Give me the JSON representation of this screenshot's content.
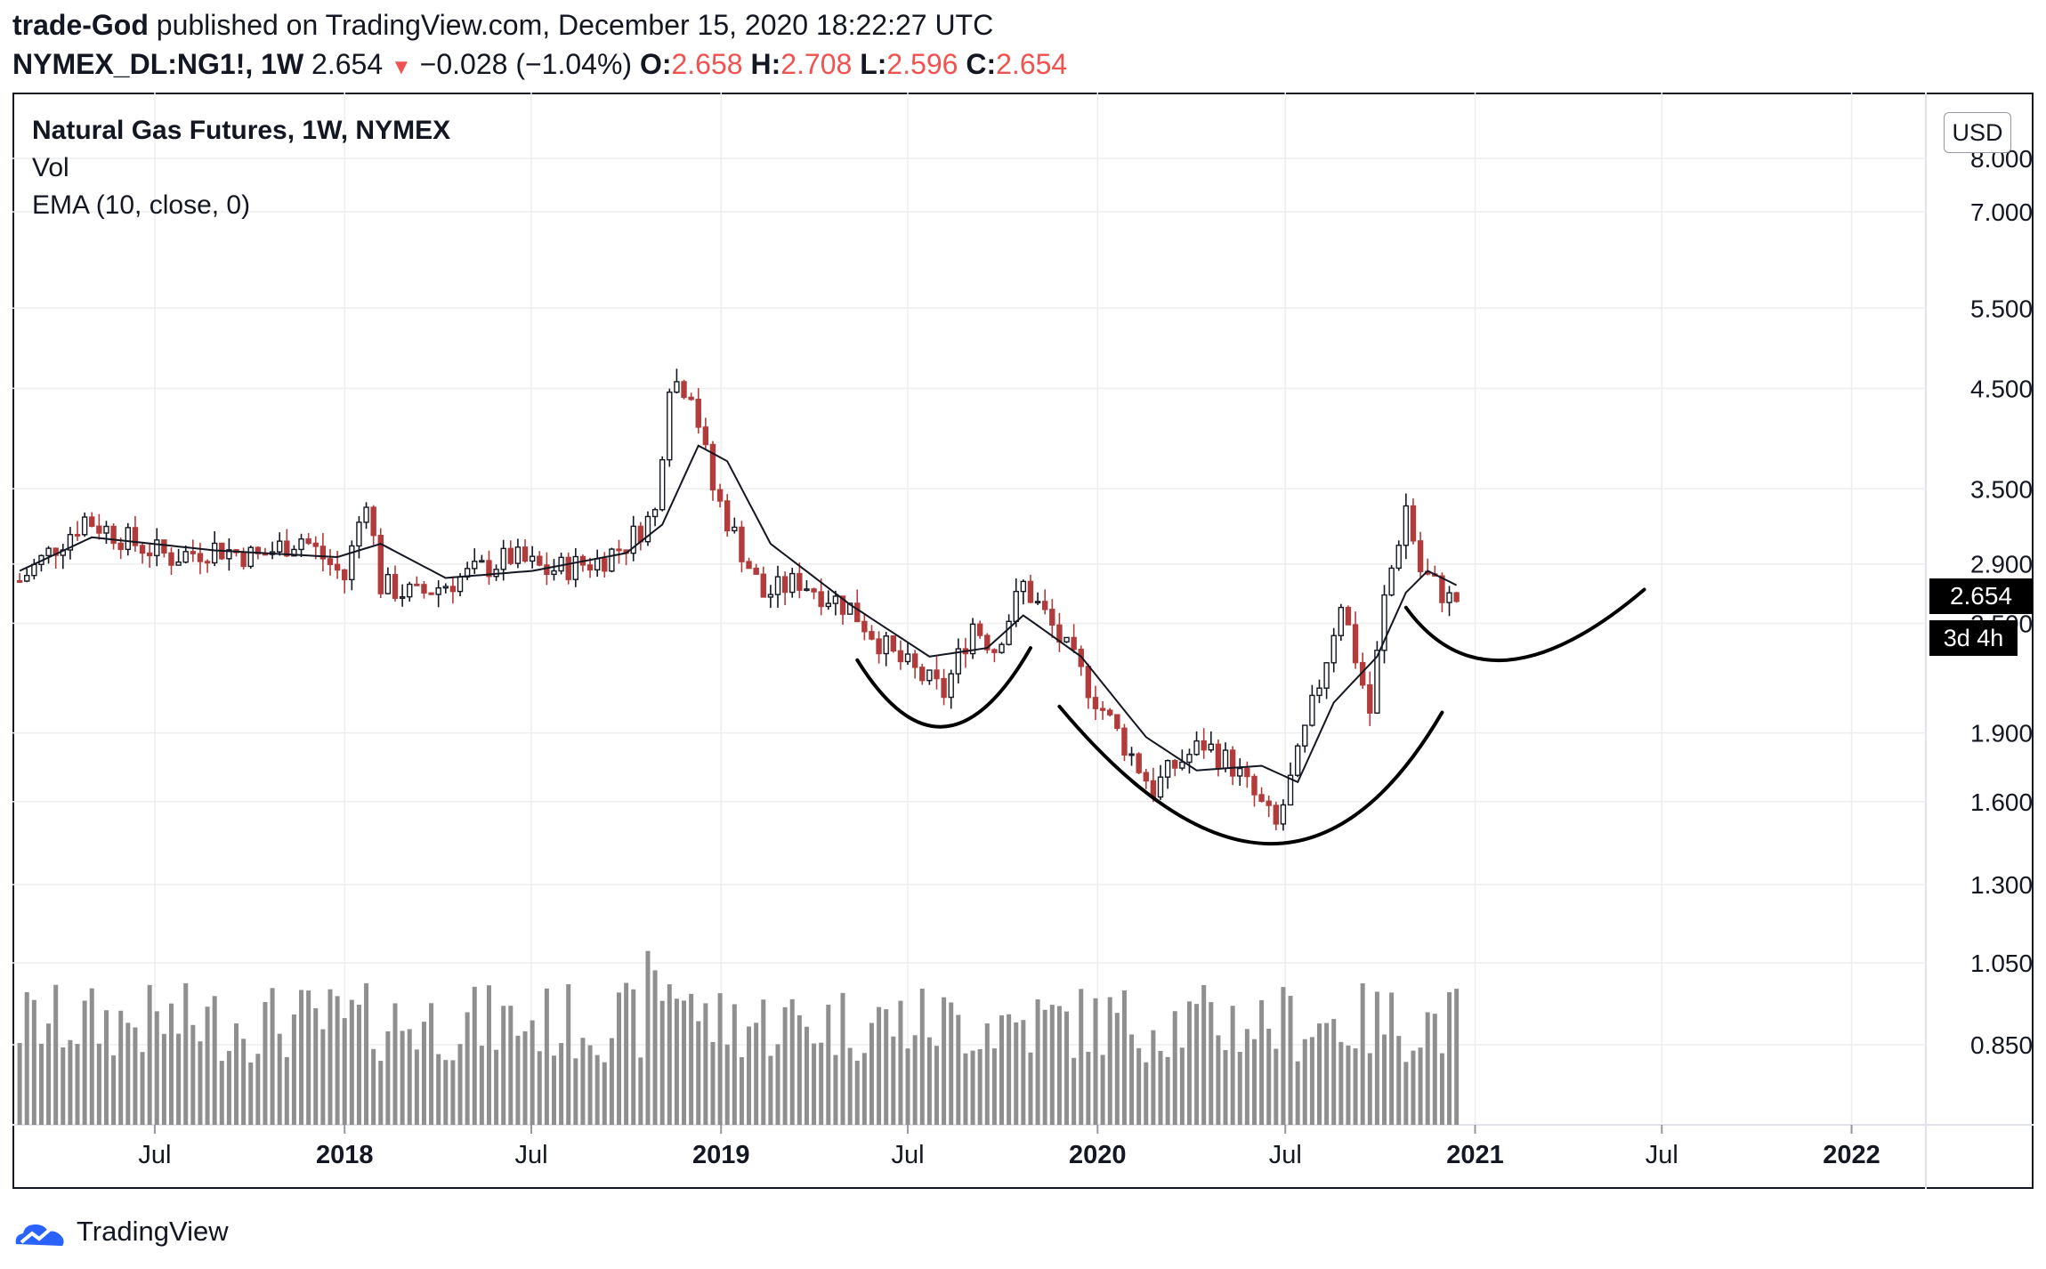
{
  "header": {
    "author": "trade-God",
    "published_text": " published on TradingView.com, December 15, 2020 18:22:27 UTC",
    "symbol": "NYMEX_DL:NG1!, 1W",
    "last": "2.654",
    "change_arrow": "▼",
    "change": "−0.028 (−1.04%)",
    "o_label": "O:",
    "o_value": "2.658",
    "h_label": "H:",
    "h_value": "2.708",
    "l_label": "L:",
    "l_value": "2.596",
    "c_label": "C:",
    "c_value": "2.654"
  },
  "legend": {
    "title": "Natural Gas Futures, 1W, NYMEX",
    "volume": "Vol",
    "ema": "EMA (10, close, 0)"
  },
  "axis": {
    "currency": "USD",
    "price_tag": "2.654",
    "countdown": "3d 4h"
  },
  "footer": {
    "brand": "TradingView"
  },
  "colors": {
    "up": "#131722",
    "down": "#b23b3b",
    "ema": "#131722",
    "volume": "#8f8f8f",
    "grid": "#eeeeee",
    "pattern_stroke": "#000000",
    "text": "#131722",
    "accent_red": "#ef5350"
  },
  "chart_data": {
    "type": "candlestick",
    "timeframe": "1W",
    "x_axis_type": "date",
    "x_range": [
      "2017-02-13",
      "2022-03-14"
    ],
    "y_scale": "log",
    "y_range": [
      1.1,
      8.0
    ],
    "x_tick_labels": [
      {
        "label": "Jul",
        "date": "2017-07-01",
        "bold": false
      },
      {
        "label": "2018",
        "date": "2018-01-01",
        "bold": true
      },
      {
        "label": "Jul",
        "date": "2018-07-01",
        "bold": false
      },
      {
        "label": "2019",
        "date": "2019-01-01",
        "bold": true
      },
      {
        "label": "Jul",
        "date": "2019-07-01",
        "bold": false
      },
      {
        "label": "2020",
        "date": "2020-01-01",
        "bold": true
      },
      {
        "label": "Jul",
        "date": "2020-07-01",
        "bold": false
      },
      {
        "label": "2021",
        "date": "2021-01-01",
        "bold": true
      },
      {
        "label": "Jul",
        "date": "2021-07-01",
        "bold": false
      },
      {
        "label": "2022",
        "date": "2022-01-01",
        "bold": true
      }
    ],
    "y_tick_labels": [
      "8.000",
      "7.000",
      "5.500",
      "4.500",
      "3.500",
      "2.900",
      "2.500",
      "1.900",
      "1.600",
      "1.300",
      "1.050",
      "0.850"
    ],
    "y_tick_values": [
      8.0,
      7.0,
      5.5,
      4.5,
      3.5,
      2.9,
      2.5,
      1.9,
      1.6,
      1.3,
      null,
      null
    ],
    "close_path": [
      [
        "2017-02-20",
        2.78
      ],
      [
        "2017-04-24",
        3.25
      ],
      [
        "2017-06-12",
        3.05
      ],
      [
        "2017-07-17",
        2.95
      ],
      [
        "2017-08-28",
        3.02
      ],
      [
        "2017-10-09",
        2.95
      ],
      [
        "2017-11-20",
        3.1
      ],
      [
        "2018-01-01",
        2.8
      ],
      [
        "2018-01-22",
        3.45
      ],
      [
        "2018-02-05",
        2.75
      ],
      [
        "2018-03-12",
        2.68
      ],
      [
        "2018-04-23",
        2.8
      ],
      [
        "2018-06-11",
        2.95
      ],
      [
        "2018-07-16",
        2.85
      ],
      [
        "2018-09-03",
        2.92
      ],
      [
        "2018-10-01",
        3.05
      ],
      [
        "2018-10-29",
        3.3
      ],
      [
        "2018-11-12",
        4.6
      ],
      [
        "2018-12-03",
        4.5
      ],
      [
        "2018-12-24",
        3.5
      ],
      [
        "2019-01-21",
        3.0
      ],
      [
        "2019-02-11",
        2.68
      ],
      [
        "2019-03-18",
        2.78
      ],
      [
        "2019-05-06",
        2.6
      ],
      [
        "2019-06-17",
        2.3
      ],
      [
        "2019-08-05",
        2.1
      ],
      [
        "2019-09-02",
        2.5
      ],
      [
        "2019-09-23",
        2.35
      ],
      [
        "2019-10-21",
        2.75
      ],
      [
        "2019-11-11",
        2.55
      ],
      [
        "2019-12-16",
        2.2
      ],
      [
        "2020-01-20",
        1.9
      ],
      [
        "2020-02-24",
        1.65
      ],
      [
        "2020-03-16",
        1.75
      ],
      [
        "2020-04-13",
        1.85
      ],
      [
        "2020-05-11",
        1.75
      ],
      [
        "2020-06-22",
        1.5
      ],
      [
        "2020-07-13",
        1.78
      ],
      [
        "2020-08-10",
        2.3
      ],
      [
        "2020-08-24",
        2.65
      ],
      [
        "2020-09-21",
        2.0
      ],
      [
        "2020-10-05",
        2.65
      ],
      [
        "2020-10-26",
        3.35
      ],
      [
        "2020-11-09",
        2.85
      ],
      [
        "2020-12-07",
        2.654
      ]
    ],
    "ema_path": [
      [
        "2017-02-20",
        2.85
      ],
      [
        "2017-05-01",
        3.1
      ],
      [
        "2017-08-28",
        3.0
      ],
      [
        "2017-12-25",
        2.95
      ],
      [
        "2018-02-05",
        3.05
      ],
      [
        "2018-04-09",
        2.8
      ],
      [
        "2018-07-02",
        2.85
      ],
      [
        "2018-10-01",
        2.98
      ],
      [
        "2018-11-05",
        3.2
      ],
      [
        "2018-12-10",
        3.9
      ],
      [
        "2019-01-07",
        3.75
      ],
      [
        "2019-02-18",
        3.05
      ],
      [
        "2019-05-06",
        2.62
      ],
      [
        "2019-07-22",
        2.3
      ],
      [
        "2019-09-16",
        2.35
      ],
      [
        "2019-10-21",
        2.55
      ],
      [
        "2019-12-16",
        2.3
      ],
      [
        "2020-02-17",
        1.88
      ],
      [
        "2020-04-06",
        1.73
      ],
      [
        "2020-06-08",
        1.75
      ],
      [
        "2020-07-13",
        1.68
      ],
      [
        "2020-08-17",
        2.05
      ],
      [
        "2020-09-28",
        2.3
      ],
      [
        "2020-10-26",
        2.7
      ],
      [
        "2020-11-16",
        2.85
      ],
      [
        "2020-12-14",
        2.75
      ]
    ],
    "volume_scale_note": "volume pane without printed axis",
    "pattern": "inverse head and shoulders (hand-drawn curves)"
  }
}
